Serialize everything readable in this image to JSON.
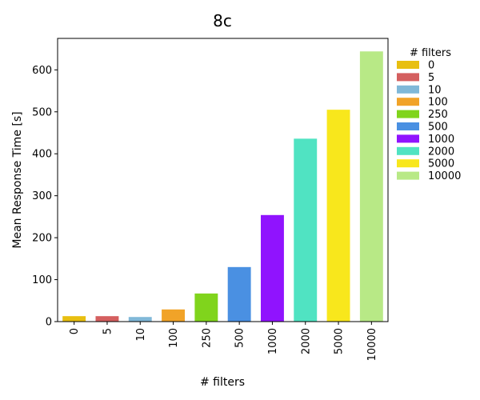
{
  "chart_data": {
    "type": "bar",
    "title": "8c",
    "xlabel": "# filters",
    "ylabel": "Mean Response Time [s]",
    "ylim": [
      0,
      675
    ],
    "yticks": [
      0,
      100,
      200,
      300,
      400,
      500,
      600
    ],
    "grid": false,
    "legend_title": "# filters",
    "legend_position": "outside-right",
    "categories": [
      "0",
      "5",
      "10",
      "100",
      "250",
      "500",
      "1000",
      "2000",
      "5000",
      "10000"
    ],
    "values": [
      13,
      13,
      11,
      29,
      67,
      130,
      254,
      436,
      505,
      644
    ],
    "colors": [
      "#e8bf10",
      "#d45f5f",
      "#80b8d8",
      "#f1a328",
      "#80d41c",
      "#4a90e2",
      "#9013fe",
      "#50e3c2",
      "#f8e71c",
      "#b8e986"
    ],
    "bar_width_fraction": 0.7
  }
}
